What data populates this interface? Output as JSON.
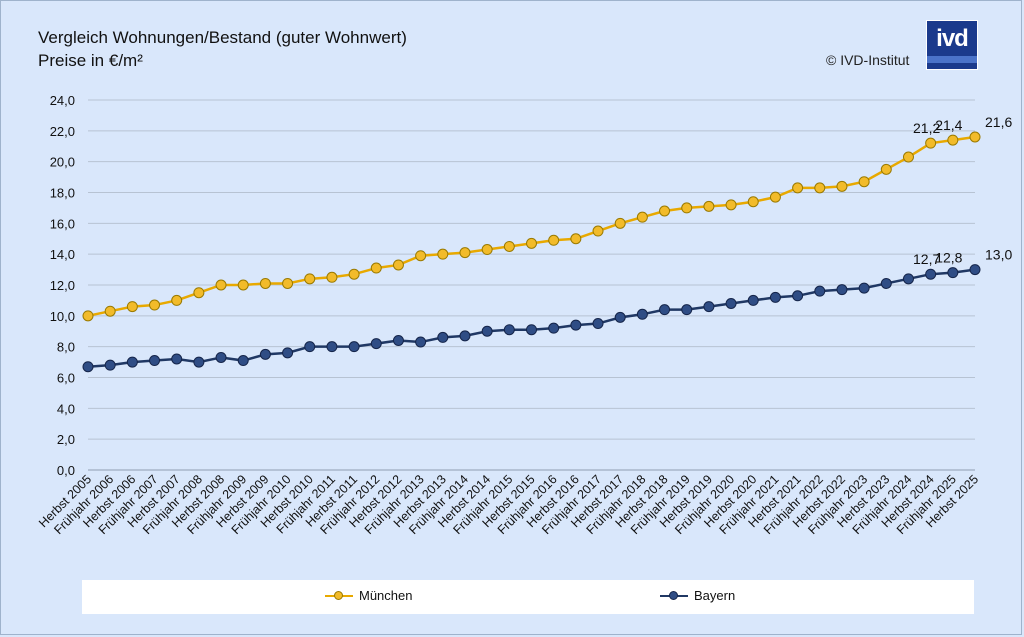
{
  "header": {
    "title_line1": "Vergleich Wohnungen/Bestand (guter Wohnwert)",
    "title_line2": "Preise in €/m²",
    "copyright": "© IVD-Institut",
    "logo_text": "ivd"
  },
  "colors": {
    "muenchen": "#e8a900",
    "muenchen_marker": "#f2bb2a",
    "bayern": "#203864",
    "bayern_marker": "#2f4d85",
    "grid": "#b7c3d3",
    "background": "#d9e7fb"
  },
  "chart_data": {
    "type": "line",
    "title": "Vergleich Wohnungen/Bestand (guter Wohnwert)",
    "subtitle": "Preise in €/m²",
    "ylim": [
      0,
      24
    ],
    "y_ticks": [
      "0,0",
      "2,0",
      "4,0",
      "6,0",
      "8,0",
      "10,0",
      "12,0",
      "14,0",
      "16,0",
      "18,0",
      "20,0",
      "22,0",
      "24,0"
    ],
    "grid": true,
    "legend_position": "bottom",
    "categories": [
      "Herbst 2005",
      "Frühjahr 2006",
      "Herbst 2006",
      "Frühjahr 2007",
      "Herbst 2007",
      "Frühjahr 2008",
      "Herbst 2008",
      "Frühjahr 2009",
      "Herbst 2009",
      "Frühjahr 2010",
      "Herbst 2010",
      "Frühjahr 2011",
      "Herbst 2011",
      "Frühjahr 2012",
      "Herbst 2012",
      "Frühjahr 2013",
      "Herbst 2013",
      "Frühjahr 2014",
      "Herbst 2014",
      "Frühjahr 2015",
      "Herbst 2015",
      "Frühjahr 2016",
      "Herbst 2016",
      "Frühjahr 2017",
      "Herbst 2017",
      "Frühjahr 2018",
      "Herbst 2018",
      "Frühjahr 2019",
      "Herbst 2019",
      "Frühjahr 2020",
      "Herbst 2020",
      "Frühjahr 2021",
      "Herbst 2021",
      "Frühjahr 2022",
      "Herbst 2022",
      "Frühjahr 2023",
      "Herbst 2023",
      "Frühjahr 2024",
      "Herbst 2024",
      "Frühjahr 2025",
      "Herbst 2025"
    ],
    "series": [
      {
        "name": "München",
        "values": [
          10.0,
          10.3,
          10.6,
          10.7,
          11.0,
          11.5,
          12.0,
          12.0,
          12.1,
          12.1,
          12.4,
          12.5,
          12.7,
          13.1,
          13.3,
          13.9,
          14.0,
          14.1,
          14.3,
          14.5,
          14.7,
          14.9,
          15.0,
          15.5,
          16.0,
          16.4,
          16.8,
          17.0,
          17.1,
          17.2,
          17.4,
          17.7,
          18.3,
          18.3,
          18.4,
          18.7,
          19.5,
          20.3,
          21.2,
          21.4,
          21.6
        ],
        "labels": [
          {
            "index": 38,
            "text": "21,2"
          },
          {
            "index": 39,
            "text": "21,4"
          },
          {
            "index": 40,
            "text": "21,6"
          }
        ]
      },
      {
        "name": "Bayern",
        "values": [
          6.7,
          6.8,
          7.0,
          7.1,
          7.2,
          7.0,
          7.3,
          7.1,
          7.5,
          7.6,
          8.0,
          8.0,
          8.0,
          8.2,
          8.4,
          8.3,
          8.6,
          8.7,
          9.0,
          9.1,
          9.1,
          9.2,
          9.4,
          9.5,
          9.9,
          10.1,
          10.4,
          10.4,
          10.6,
          10.8,
          11.0,
          11.2,
          11.3,
          11.6,
          11.7,
          11.8,
          12.1,
          12.4,
          12.7,
          12.8,
          13.0
        ],
        "labels": [
          {
            "index": 38,
            "text": "12,7"
          },
          {
            "index": 39,
            "text": "12,8"
          },
          {
            "index": 40,
            "text": "13,0"
          }
        ]
      }
    ]
  }
}
